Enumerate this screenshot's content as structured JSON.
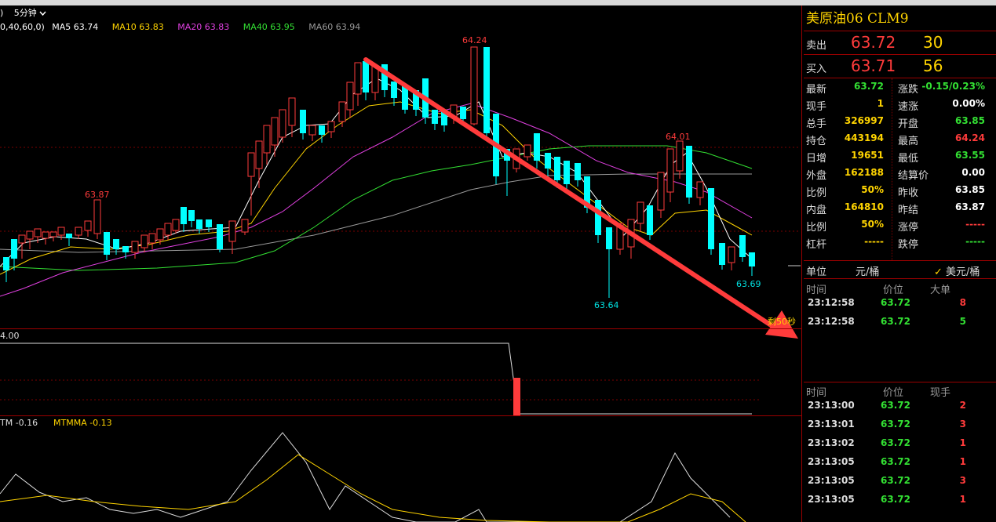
{
  "toolbar": {
    "params_prefix": ")",
    "period": "5分钟",
    "period_chevron": "chevron-down-icon"
  },
  "ma_legend": {
    "params": "0,40,60,0)",
    "items": [
      {
        "label": "MA5 63.74",
        "color": "#ffffff"
      },
      {
        "label": "MA10 63.83",
        "color": "#ffd400"
      },
      {
        "label": "MA20 63.83",
        "color": "#e040e0"
      },
      {
        "label": "MA40 63.95",
        "color": "#33e033"
      },
      {
        "label": "MA60 63.94",
        "color": "#9a9a9a"
      }
    ]
  },
  "chart": {
    "price_high_label": "64.24",
    "price_low_label": "63.64",
    "peak2_label": "64.01",
    "left_peak_label": "63.87",
    "last_label": "63.69",
    "countdown": "剩50秒",
    "sub1_label": "4.00",
    "mtm_label": "TM -0.16",
    "mtmma_label": "MTMMA -0.13"
  },
  "panel": {
    "title": "美原油06  CLM9",
    "sell": {
      "label": "卖出",
      "price": "63.72",
      "vol": "30"
    },
    "buy": {
      "label": "买入",
      "price": "63.71",
      "vol": "56"
    },
    "stats": [
      {
        "l1": "最新",
        "v1": "63.72",
        "c1": "green",
        "l2": "涨跌",
        "v2": "-0.15/0.23%",
        "c2": "green"
      },
      {
        "l1": "现手",
        "v1": "1",
        "c1": "yellow",
        "l2": "速涨",
        "v2": "0.00%",
        "c2": "white"
      },
      {
        "l1": "总手",
        "v1": "326997",
        "c1": "yellow",
        "l2": "开盘",
        "v2": "63.85",
        "c2": "green"
      },
      {
        "l1": "持仓",
        "v1": "443194",
        "c1": "yellow",
        "l2": "最高",
        "v2": "64.24",
        "c2": "red"
      },
      {
        "l1": "日增",
        "v1": "19651",
        "c1": "yellow",
        "l2": "最低",
        "v2": "63.55",
        "c2": "green"
      },
      {
        "l1": "外盘",
        "v1": "162188",
        "c1": "yellow",
        "l2": "结算价",
        "v2": "0.00",
        "c2": "white"
      },
      {
        "l1": "比例",
        "v1": "50%",
        "c1": "yellow",
        "l2": "昨收",
        "v2": "63.85",
        "c2": "white"
      },
      {
        "l1": "内盘",
        "v1": "164810",
        "c1": "yellow",
        "l2": "昨结",
        "v2": "63.87",
        "c2": "white"
      },
      {
        "l1": "比例",
        "v1": "50%",
        "c1": "yellow",
        "l2": "涨停",
        "v2": "-----",
        "c2": "red"
      },
      {
        "l1": "杠杆",
        "v1": "-----",
        "c1": "yellow",
        "l2": "跌停",
        "v2": "-----",
        "c2": "green"
      }
    ],
    "unit": {
      "label": "单位",
      "opt1": "元/桶",
      "opt2": "美元/桶",
      "check_icon": "check-icon"
    },
    "big_head": {
      "time": "时间",
      "price": "价位",
      "vol": "大单"
    },
    "big_orders": [
      {
        "time": "23:12:58",
        "price": "63.72",
        "vol": "8",
        "vc": "red"
      },
      {
        "time": "23:12:58",
        "price": "63.72",
        "vol": "5",
        "vc": "green"
      }
    ],
    "tick_head": {
      "time": "时间",
      "price": "价位",
      "vol": "现手"
    },
    "ticks": [
      {
        "time": "23:13:00",
        "price": "63.72",
        "vol": "2",
        "vc": "red"
      },
      {
        "time": "23:13:01",
        "price": "63.72",
        "vol": "3",
        "vc": "red"
      },
      {
        "time": "23:13:02",
        "price": "63.72",
        "vol": "1",
        "vc": "red"
      },
      {
        "time": "23:13:05",
        "price": "63.72",
        "vol": "1",
        "vc": "red"
      },
      {
        "time": "23:13:05",
        "price": "63.72",
        "vol": "3",
        "vc": "red"
      },
      {
        "time": "23:13:05",
        "price": "63.72",
        "vol": "1",
        "vc": "red"
      }
    ]
  }
}
